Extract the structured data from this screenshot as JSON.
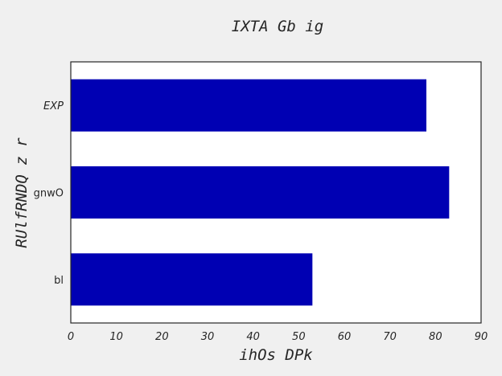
{
  "chart_data": {
    "type": "bar",
    "orientation": "horizontal",
    "title": "IXTA  Gb ig",
    "xlabel": "ihOs DPk",
    "ylabel": "RUlfRNDQ z r",
    "categories": [
      "EXP",
      "gnwO",
      "bl"
    ],
    "values": [
      78,
      83,
      53
    ],
    "xlim": [
      0,
      90
    ],
    "xticks": [
      0,
      10,
      20,
      30,
      40,
      50,
      60,
      70,
      80,
      90
    ],
    "grid": false,
    "colors": {
      "bar": "#0000b3",
      "plot_bg": "#ffffff",
      "figure_bg": "#f0f0f0",
      "axes": "#262626",
      "text": "#262626"
    }
  }
}
